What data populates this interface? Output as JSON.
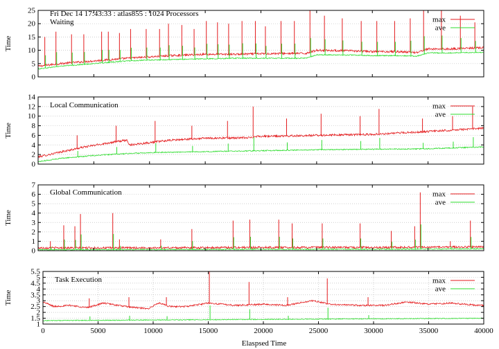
{
  "figure": {
    "header": "Fri Dec 14 17:43:33 : atlas855 : 1024 Processors",
    "xlabel": "Elaspsed Time"
  },
  "chart_data": [
    {
      "type": "line",
      "title": "Waiting",
      "ylabel": "Time",
      "xlim": [
        0,
        40000
      ],
      "ylim": [
        0,
        25
      ],
      "yticks": [
        0,
        5,
        10,
        15,
        20,
        25
      ],
      "grid": true,
      "legend": "top-right",
      "series": [
        {
          "name": "max",
          "color": "#e41a1c",
          "x": [
            0,
            2000,
            5000,
            8000,
            10000,
            12000,
            15000,
            18000,
            20000,
            22000,
            24000,
            25000,
            28000,
            30000,
            32000,
            34000,
            35000,
            37000,
            40000
          ],
          "values": [
            4,
            5,
            6,
            7,
            7.5,
            8,
            8.5,
            8.5,
            8.7,
            8.8,
            8.8,
            10,
            9.8,
            9.5,
            9.5,
            9.2,
            10.5,
            10.5,
            11
          ]
        },
        {
          "name": "ave",
          "color": "#2edc2e",
          "x": [
            0,
            2000,
            5000,
            8000,
            10000,
            12000,
            15000,
            18000,
            20000,
            22000,
            24000,
            25000,
            28000,
            30000,
            32000,
            34000,
            35000,
            37000,
            40000
          ],
          "values": [
            3,
            4,
            5,
            6,
            6.3,
            6.5,
            6.8,
            7,
            7,
            7,
            7,
            8.3,
            8.2,
            8,
            8,
            7.8,
            9,
            9,
            9.2
          ]
        }
      ],
      "spikes": [
        {
          "x": 600,
          "y": 15
        },
        {
          "x": 1600,
          "y": 17
        },
        {
          "x": 3000,
          "y": 16
        },
        {
          "x": 4100,
          "y": 16
        },
        {
          "x": 5700,
          "y": 17
        },
        {
          "x": 6300,
          "y": 17
        },
        {
          "x": 7300,
          "y": 16.5
        },
        {
          "x": 8300,
          "y": 18
        },
        {
          "x": 9700,
          "y": 18
        },
        {
          "x": 10900,
          "y": 18
        },
        {
          "x": 11700,
          "y": 20
        },
        {
          "x": 12900,
          "y": 19.5
        },
        {
          "x": 14000,
          "y": 18
        },
        {
          "x": 15100,
          "y": 21
        },
        {
          "x": 16100,
          "y": 20.5
        },
        {
          "x": 17100,
          "y": 20
        },
        {
          "x": 18300,
          "y": 21
        },
        {
          "x": 19500,
          "y": 21
        },
        {
          "x": 20400,
          "y": 19
        },
        {
          "x": 21800,
          "y": 21
        },
        {
          "x": 23000,
          "y": 21
        },
        {
          "x": 24400,
          "y": 25
        },
        {
          "x": 25700,
          "y": 23
        },
        {
          "x": 27300,
          "y": 22
        },
        {
          "x": 29000,
          "y": 21
        },
        {
          "x": 30400,
          "y": 21
        },
        {
          "x": 32000,
          "y": 21
        },
        {
          "x": 33400,
          "y": 22
        },
        {
          "x": 34600,
          "y": 25
        },
        {
          "x": 36200,
          "y": 25
        },
        {
          "x": 37900,
          "y": 23
        },
        {
          "x": 39200,
          "y": 20.5
        }
      ]
    },
    {
      "type": "line",
      "title": "Local Communication",
      "ylabel": "Time",
      "xlim": [
        0,
        40000
      ],
      "ylim": [
        0,
        14
      ],
      "yticks": [
        0,
        2,
        4,
        6,
        8,
        10,
        12,
        14
      ],
      "grid": true,
      "legend": "top-right",
      "series": [
        {
          "name": "max",
          "color": "#e41a1c",
          "x": [
            0,
            2000,
            4000,
            6500,
            8000,
            8200,
            10000,
            12000,
            15000,
            19000,
            19500,
            21000,
            25000,
            30000,
            35000,
            38000,
            40000
          ],
          "values": [
            1.5,
            2.5,
            3.5,
            4.5,
            5,
            4,
            4.5,
            5,
            5.4,
            5.5,
            5.8,
            5.8,
            6,
            6.2,
            6.8,
            7.2,
            7.5
          ]
        },
        {
          "name": "ave",
          "color": "#2edc2e",
          "x": [
            0,
            2000,
            5000,
            8000,
            10000,
            15000,
            20000,
            25000,
            30000,
            35000,
            40000
          ],
          "values": [
            0.5,
            1.2,
            1.8,
            2.2,
            2.4,
            2.6,
            2.8,
            3,
            3.1,
            3.2,
            3.6
          ]
        }
      ],
      "spikes": [
        {
          "x": 3500,
          "y": 6
        },
        {
          "x": 7000,
          "y": 8
        },
        {
          "x": 10500,
          "y": 9
        },
        {
          "x": 13800,
          "y": 8
        },
        {
          "x": 17000,
          "y": 9
        },
        {
          "x": 19300,
          "y": 12
        },
        {
          "x": 22300,
          "y": 9.5
        },
        {
          "x": 25400,
          "y": 10.5
        },
        {
          "x": 28900,
          "y": 10
        },
        {
          "x": 30600,
          "y": 11.5
        },
        {
          "x": 34500,
          "y": 9.5
        },
        {
          "x": 37200,
          "y": 10
        },
        {
          "x": 39000,
          "y": 12
        }
      ]
    },
    {
      "type": "line",
      "title": "Global Communication",
      "ylabel": "Time",
      "xlim": [
        0,
        40000
      ],
      "ylim": [
        0,
        7
      ],
      "yticks": [
        0,
        1,
        2,
        3,
        4,
        5,
        6,
        7
      ],
      "grid": true,
      "legend": "top-right",
      "series": [
        {
          "name": "max",
          "color": "#e41a1c",
          "x": [
            0,
            10000,
            20000,
            30000,
            40000
          ],
          "values": [
            0.3,
            0.3,
            0.35,
            0.35,
            0.4
          ]
        },
        {
          "name": "ave",
          "color": "#2edc2e",
          "x": [
            0,
            10000,
            20000,
            30000,
            40000
          ],
          "values": [
            0.1,
            0.12,
            0.15,
            0.15,
            0.2
          ]
        }
      ],
      "spikes": [
        {
          "x": 1100,
          "y": 1
        },
        {
          "x": 2300,
          "y": 2.7
        },
        {
          "x": 3300,
          "y": 2.6
        },
        {
          "x": 3800,
          "y": 3.9
        },
        {
          "x": 6700,
          "y": 4
        },
        {
          "x": 7300,
          "y": 1.2
        },
        {
          "x": 11000,
          "y": 1.2
        },
        {
          "x": 13800,
          "y": 2.3
        },
        {
          "x": 17500,
          "y": 3.2
        },
        {
          "x": 19000,
          "y": 3.3
        },
        {
          "x": 21600,
          "y": 3.3
        },
        {
          "x": 22800,
          "y": 2.9
        },
        {
          "x": 25500,
          "y": 2.9
        },
        {
          "x": 28900,
          "y": 2.9
        },
        {
          "x": 31700,
          "y": 2.1
        },
        {
          "x": 33800,
          "y": 2.6
        },
        {
          "x": 34300,
          "y": 6.2
        },
        {
          "x": 37000,
          "y": 1
        },
        {
          "x": 38800,
          "y": 3.2
        }
      ]
    },
    {
      "type": "line",
      "title": "Task Execution",
      "ylabel": "Time",
      "xlim": [
        0,
        40000
      ],
      "ylim": [
        1,
        5.5
      ],
      "yticks": [
        1,
        1.5,
        2,
        2.5,
        3,
        3.5,
        4,
        4.5,
        5,
        5.5
      ],
      "grid": true,
      "legend": "top-right",
      "series": [
        {
          "name": "max",
          "color": "#e41a1c",
          "x": [
            0,
            1000,
            2500,
            4000,
            5500,
            7500,
            9500,
            10500,
            11500,
            13000,
            15000,
            17500,
            20000,
            22000,
            24500,
            26000,
            28500,
            31000,
            33000,
            35000,
            37000,
            39500
          ],
          "values": [
            2.9,
            2.5,
            2.6,
            2.4,
            2.8,
            2.5,
            2.3,
            2.8,
            2.5,
            2.5,
            2.8,
            2.6,
            2.7,
            2.6,
            3.0,
            2.7,
            2.6,
            2.6,
            2.9,
            2.7,
            2.8,
            2.6
          ]
        },
        {
          "name": "ave",
          "color": "#2edc2e",
          "x": [
            0,
            10000,
            20000,
            30000,
            40000
          ],
          "values": [
            1.3,
            1.35,
            1.4,
            1.45,
            1.5
          ]
        }
      ],
      "spikes": [
        {
          "x": 4200,
          "y": 3.2
        },
        {
          "x": 7800,
          "y": 3.3
        },
        {
          "x": 11200,
          "y": 3.3
        },
        {
          "x": 15100,
          "y": 5.5
        },
        {
          "x": 18700,
          "y": 4.6
        },
        {
          "x": 22200,
          "y": 3.3
        },
        {
          "x": 25800,
          "y": 4.9
        },
        {
          "x": 29500,
          "y": 3.3
        }
      ]
    }
  ]
}
